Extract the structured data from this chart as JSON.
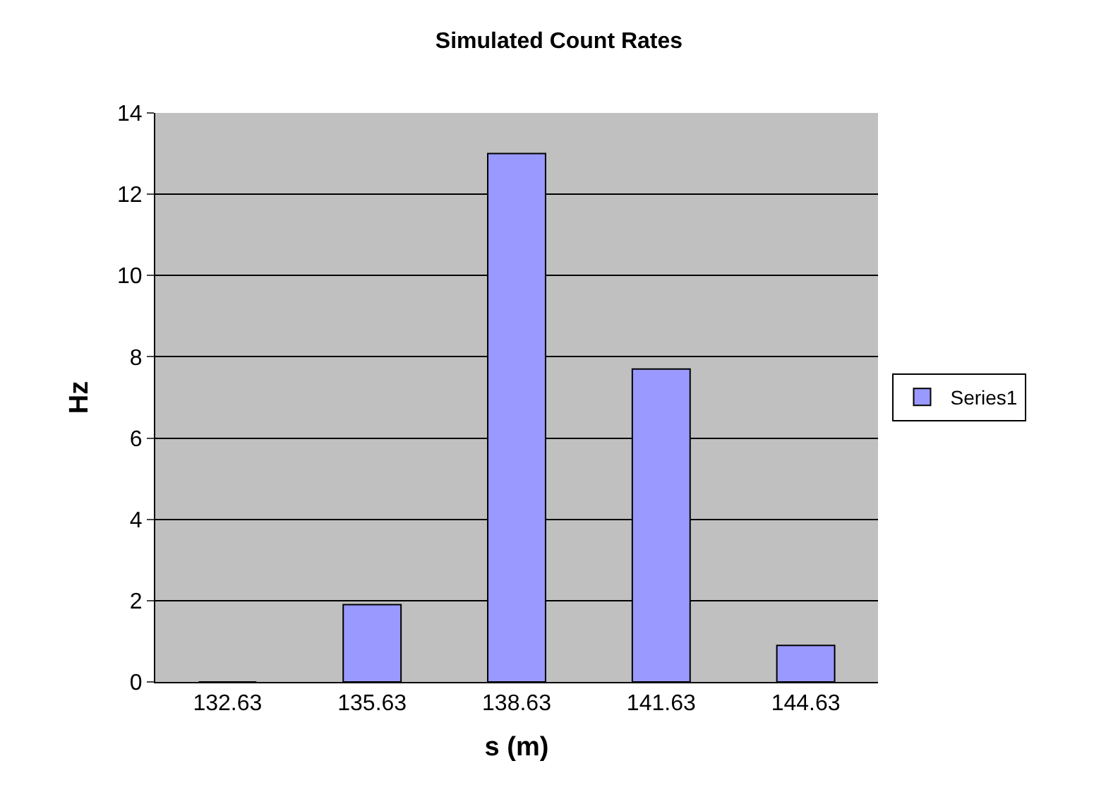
{
  "chart_data": {
    "type": "bar",
    "title": "Simulated Count Rates",
    "xlabel": "s (m)",
    "ylabel": "Hz",
    "categories": [
      "132.63",
      "135.63",
      "138.63",
      "141.63",
      "144.63"
    ],
    "series": [
      {
        "name": "Series1",
        "color": "#9999ff",
        "values": [
          0,
          1.9,
          13,
          7.7,
          0.9
        ]
      }
    ],
    "ylim": [
      0,
      14
    ],
    "yticks": [
      0,
      2,
      4,
      6,
      8,
      10,
      12,
      14
    ],
    "grid": "y",
    "legend": "right"
  }
}
